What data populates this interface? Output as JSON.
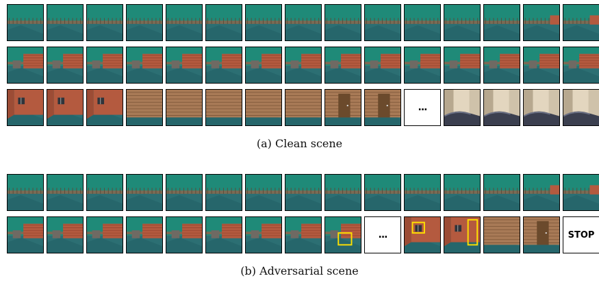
{
  "captions": {
    "clean": "(a) Clean scene",
    "adversarial": "(b) Adversarial scene"
  },
  "markers": {
    "ellipsis": "...",
    "stop": "STOP"
  },
  "colors": {
    "sky": "#1f8a78",
    "floor": "#2c6f73",
    "brick": "#b45a3f",
    "wood": "#a87a56",
    "highlight": "#ffe100"
  },
  "clean_rows": [
    [
      "distant",
      "distant",
      "distant",
      "distant",
      "distant",
      "distant",
      "distant",
      "distant",
      "distant",
      "distant",
      "distant",
      "distant",
      "distant",
      "brick-right",
      "brick-right"
    ],
    [
      "brick",
      "brick",
      "brick",
      "brick",
      "brick",
      "brick",
      "brick",
      "brick",
      "brick",
      "brick",
      "brick",
      "brick",
      "brick",
      "brick",
      "brick"
    ],
    [
      "window",
      "window",
      "window",
      "wood",
      "wood",
      "wood",
      "wood",
      "wood",
      "door",
      "door",
      "ellipsis",
      "interior",
      "interior",
      "interior",
      "interior"
    ]
  ],
  "adversarial_rows": [
    [
      "distant",
      "distant",
      "distant",
      "distant",
      "distant",
      "distant",
      "distant",
      "distant",
      "distant",
      "distant",
      "distant",
      "distant",
      "distant",
      "brick-right",
      "brick-right"
    ],
    [
      "brick",
      "brick",
      "brick",
      "brick",
      "brick",
      "brick",
      "brick",
      "brick",
      "brick-patch",
      "ellipsis",
      "window-patch",
      "window-door-patch",
      "wood",
      "door",
      "stop"
    ]
  ]
}
